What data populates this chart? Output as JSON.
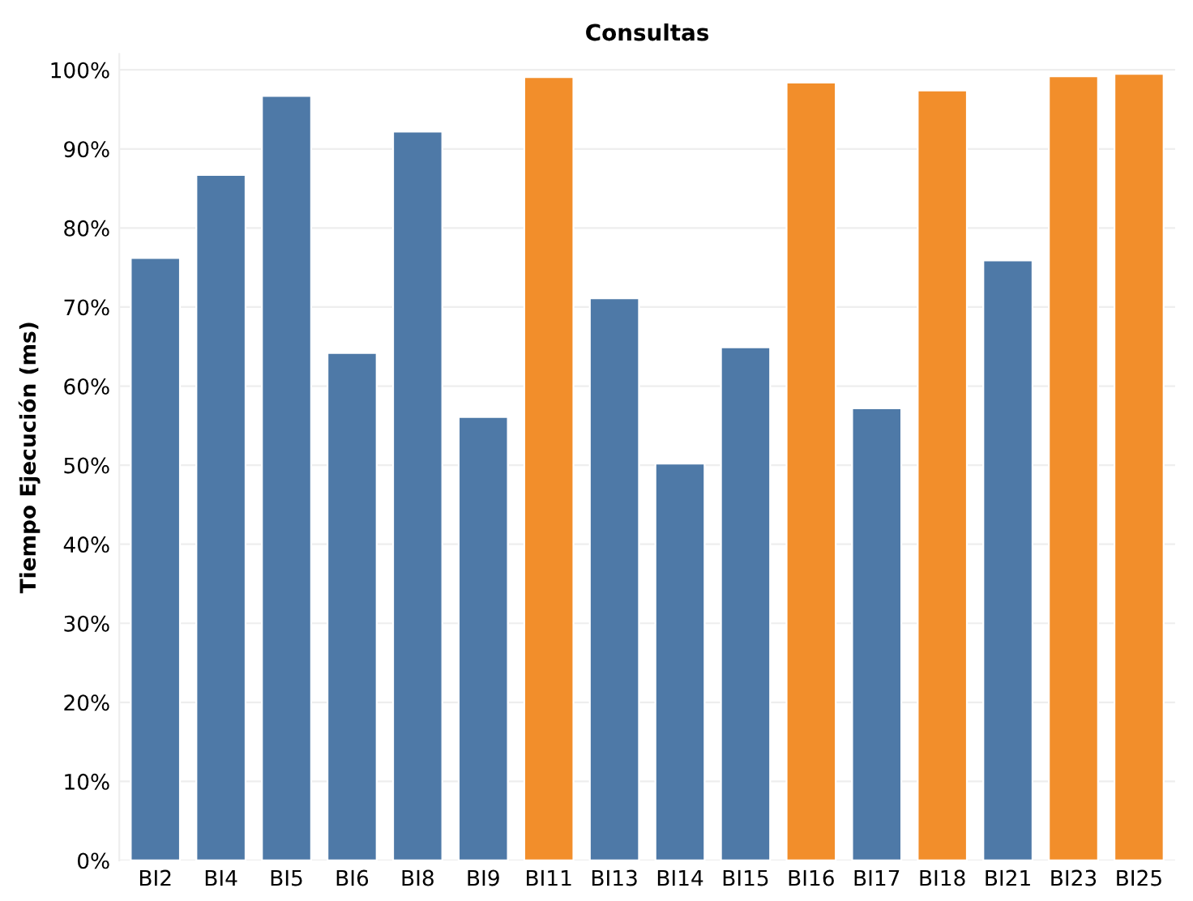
{
  "chart_data": {
    "type": "bar",
    "title": "Consultas",
    "ylabel": "Tiempo Ejecución (ms)",
    "categories": [
      "BI2",
      "BI4",
      "BI5",
      "BI6",
      "BI8",
      "BI9",
      "BI11",
      "BI13",
      "BI14",
      "BI15",
      "BI16",
      "BI17",
      "BI18",
      "BI21",
      "BI23",
      "BI25"
    ],
    "values": [
      76.2,
      86.7,
      96.7,
      64.2,
      92.2,
      56.1,
      99.1,
      71.1,
      50.2,
      64.9,
      98.4,
      57.2,
      97.4,
      75.9,
      99.2,
      99.5
    ],
    "colors": [
      "#4e79a7",
      "#4e79a7",
      "#4e79a7",
      "#4e79a7",
      "#4e79a7",
      "#4e79a7",
      "#f28e2b",
      "#4e79a7",
      "#4e79a7",
      "#4e79a7",
      "#f28e2b",
      "#4e79a7",
      "#f28e2b",
      "#4e79a7",
      "#f28e2b",
      "#f28e2b"
    ],
    "ylim": [
      0,
      102
    ],
    "yticks": [
      {
        "value": 0,
        "label": "0%"
      },
      {
        "value": 10,
        "label": "10%"
      },
      {
        "value": 20,
        "label": "20%"
      },
      {
        "value": 30,
        "label": "30%"
      },
      {
        "value": 40,
        "label": "40%"
      },
      {
        "value": 50,
        "label": "50%"
      },
      {
        "value": 60,
        "label": "60%"
      },
      {
        "value": 70,
        "label": "70%"
      },
      {
        "value": 80,
        "label": "80%"
      },
      {
        "value": 90,
        "label": "90%"
      },
      {
        "value": 100,
        "label": "100%"
      }
    ],
    "grid": "y",
    "legend": false
  }
}
